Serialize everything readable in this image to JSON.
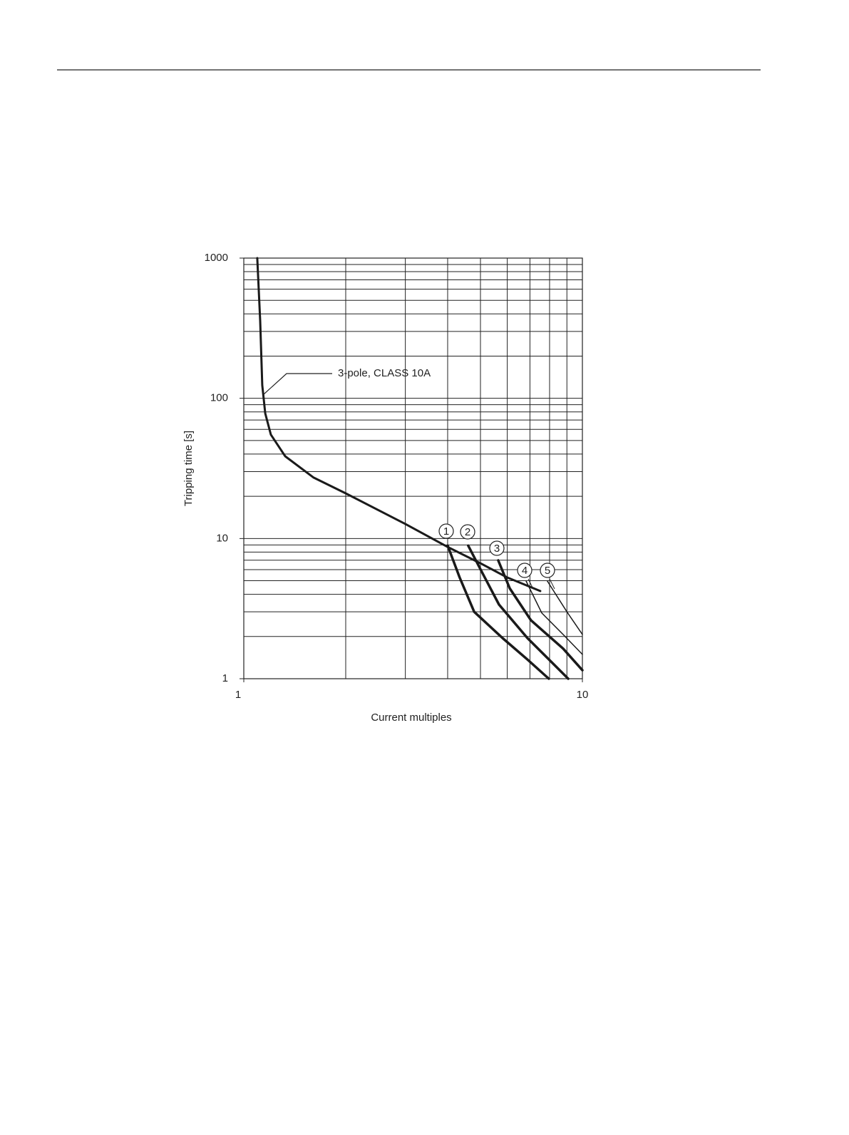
{
  "chart_data": {
    "type": "line",
    "xlabel": "Current multiples",
    "ylabel": "Tripping time [s]",
    "annotation": "3-pole, CLASS 10A",
    "xscale": "log",
    "yscale": "log",
    "grid": true,
    "xlim": [
      1,
      10
    ],
    "xticks": [
      1,
      10
    ],
    "ylim": [
      1,
      1000
    ],
    "yticks": [
      1,
      10,
      100,
      1000
    ],
    "series": [
      {
        "name": "3-pole, CLASS 10A",
        "color": "#1a1a1a",
        "x": [
          1.096,
          1.118,
          1.134,
          1.157,
          1.202,
          1.325,
          1.608,
          2.0,
          3.0,
          4.0,
          5.0,
          6.0,
          7.51
        ],
        "values": [
          1000,
          356,
          124,
          78,
          55,
          38.6,
          27.2,
          21,
          12.7,
          8.7,
          6.66,
          5.27,
          4.22
        ]
      },
      {
        "name": "1",
        "color": "#1a1a1a",
        "x": [
          4.0,
          4.34,
          4.79,
          5.81,
          6.88,
          7.96
        ],
        "values": [
          8.9,
          5.27,
          3.0,
          1.95,
          1.37,
          1
        ]
      },
      {
        "name": "2",
        "color": "#1a1a1a",
        "x": [
          4.6,
          5.02,
          5.67,
          6.88,
          9.08
        ],
        "values": [
          8.9,
          5.93,
          3.38,
          1.95,
          1
        ]
      },
      {
        "name": "3",
        "color": "#1a1a1a",
        "x": [
          5.64,
          6.1,
          7.05,
          8.77,
          10
        ],
        "values": [
          6.98,
          4.42,
          2.61,
          1.64,
          1.15
        ]
      },
      {
        "name": "4",
        "color": "#1a1a1a",
        "x": [
          6.82,
          7.59,
          8.77,
          10
        ],
        "values": [
          4.97,
          2.94,
          2.07,
          1.49
        ]
      },
      {
        "name": "5",
        "color": "#1a1a1a",
        "x": [
          7.88,
          9.0,
          10
        ],
        "values": [
          4.97,
          3.0,
          2.07
        ]
      }
    ]
  }
}
